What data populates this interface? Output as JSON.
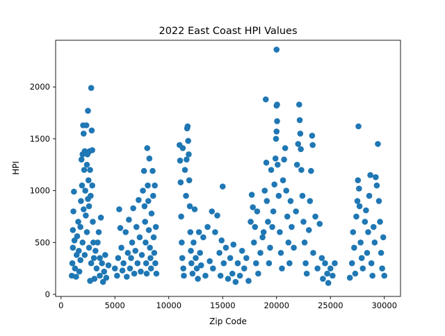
{
  "chart_data": {
    "type": "scatter",
    "title": "2022 East Coast HPI Values",
    "xlabel": "Zip Code",
    "ylabel": "HPI",
    "xlim": [
      -500,
      31500
    ],
    "ylim": [
      -20,
      2450
    ],
    "xticks": [
      0,
      5000,
      10000,
      15000,
      20000,
      25000,
      30000
    ],
    "yticks": [
      0,
      500,
      1000,
      1500,
      2000
    ],
    "grid": false,
    "marker_color": "#1f77b4",
    "points": [
      {
        "x": 1000,
        "y": 180
      },
      {
        "x": 1050,
        "y": 300
      },
      {
        "x": 1100,
        "y": 450
      },
      {
        "x": 1100,
        "y": 620
      },
      {
        "x": 1150,
        "y": 800
      },
      {
        "x": 1200,
        "y": 990
      },
      {
        "x": 1250,
        "y": 520
      },
      {
        "x": 1300,
        "y": 250
      },
      {
        "x": 1400,
        "y": 170
      },
      {
        "x": 1450,
        "y": 380
      },
      {
        "x": 1500,
        "y": 560
      },
      {
        "x": 1600,
        "y": 700
      },
      {
        "x": 1650,
        "y": 420
      },
      {
        "x": 1700,
        "y": 220
      },
      {
        "x": 1800,
        "y": 330
      },
      {
        "x": 1850,
        "y": 900
      },
      {
        "x": 1900,
        "y": 1300
      },
      {
        "x": 1950,
        "y": 1050
      },
      {
        "x": 2000,
        "y": 1350
      },
      {
        "x": 2050,
        "y": 1630
      },
      {
        "x": 2100,
        "y": 1550
      },
      {
        "x": 2150,
        "y": 1200
      },
      {
        "x": 2200,
        "y": 1380
      },
      {
        "x": 2250,
        "y": 1000
      },
      {
        "x": 2300,
        "y": 760
      },
      {
        "x": 2350,
        "y": 1630
      },
      {
        "x": 2400,
        "y": 1250
      },
      {
        "x": 2450,
        "y": 1350
      },
      {
        "x": 2500,
        "y": 1770
      },
      {
        "x": 2550,
        "y": 1100
      },
      {
        "x": 2600,
        "y": 850
      },
      {
        "x": 2650,
        "y": 1380
      },
      {
        "x": 2700,
        "y": 1200
      },
      {
        "x": 2750,
        "y": 950
      },
      {
        "x": 2800,
        "y": 1990
      },
      {
        "x": 2850,
        "y": 1580
      },
      {
        "x": 2900,
        "y": 1390
      },
      {
        "x": 2900,
        "y": 1050
      },
      {
        "x": 2950,
        "y": 700
      },
      {
        "x": 3000,
        "y": 500
      },
      {
        "x": 3050,
        "y": 350
      },
      {
        "x": 2800,
        "y": 300
      },
      {
        "x": 2600,
        "y": 450
      },
      {
        "x": 2400,
        "y": 600
      },
      {
        "x": 2200,
        "y": 380
      },
      {
        "x": 2000,
        "y": 500
      },
      {
        "x": 1800,
        "y": 650
      },
      {
        "x": 2100,
        "y": 820
      },
      {
        "x": 2500,
        "y": 920
      },
      {
        "x": 2700,
        "y": 130
      },
      {
        "x": 3200,
        "y": 420
      },
      {
        "x": 3300,
        "y": 250
      },
      {
        "x": 3500,
        "y": 600
      },
      {
        "x": 3600,
        "y": 180
      },
      {
        "x": 3700,
        "y": 740
      },
      {
        "x": 3800,
        "y": 300
      },
      {
        "x": 3900,
        "y": 120
      },
      {
        "x": 4000,
        "y": 220
      },
      {
        "x": 4100,
        "y": 380
      },
      {
        "x": 4200,
        "y": 160
      },
      {
        "x": 4400,
        "y": 280
      },
      {
        "x": 3400,
        "y": 500
      },
      {
        "x": 3100,
        "y": 150
      },
      {
        "x": 3600,
        "y": 350
      },
      {
        "x": 5000,
        "y": 250
      },
      {
        "x": 5200,
        "y": 180
      },
      {
        "x": 5300,
        "y": 350
      },
      {
        "x": 5400,
        "y": 820
      },
      {
        "x": 5500,
        "y": 640
      },
      {
        "x": 5600,
        "y": 450
      },
      {
        "x": 5700,
        "y": 230
      },
      {
        "x": 5800,
        "y": 300
      },
      {
        "x": 6000,
        "y": 600
      },
      {
        "x": 6100,
        "y": 170
      },
      {
        "x": 6200,
        "y": 400
      },
      {
        "x": 6300,
        "y": 720
      },
      {
        "x": 6400,
        "y": 250
      },
      {
        "x": 6500,
        "y": 350
      },
      {
        "x": 6600,
        "y": 500
      },
      {
        "x": 6700,
        "y": 830
      },
      {
        "x": 6800,
        "y": 200
      },
      {
        "x": 6900,
        "y": 420
      },
      {
        "x": 7000,
        "y": 650
      },
      {
        "x": 7100,
        "y": 300
      },
      {
        "x": 7200,
        "y": 910
      },
      {
        "x": 7300,
        "y": 550
      },
      {
        "x": 7400,
        "y": 220
      },
      {
        "x": 7500,
        "y": 380
      },
      {
        "x": 7600,
        "y": 1000
      },
      {
        "x": 7700,
        "y": 1190
      },
      {
        "x": 7750,
        "y": 850
      },
      {
        "x": 7800,
        "y": 700
      },
      {
        "x": 7850,
        "y": 500
      },
      {
        "x": 7900,
        "y": 300
      },
      {
        "x": 7950,
        "y": 200
      },
      {
        "x": 8000,
        "y": 1410
      },
      {
        "x": 8050,
        "y": 1050
      },
      {
        "x": 8100,
        "y": 900
      },
      {
        "x": 8150,
        "y": 620
      },
      {
        "x": 8200,
        "y": 1310
      },
      {
        "x": 8250,
        "y": 450
      },
      {
        "x": 8300,
        "y": 350
      },
      {
        "x": 8350,
        "y": 250
      },
      {
        "x": 8400,
        "y": 780
      },
      {
        "x": 8500,
        "y": 1190
      },
      {
        "x": 8550,
        "y": 950
      },
      {
        "x": 8600,
        "y": 550
      },
      {
        "x": 8650,
        "y": 400
      },
      {
        "x": 8700,
        "y": 1050
      },
      {
        "x": 8750,
        "y": 300
      },
      {
        "x": 8800,
        "y": 650
      },
      {
        "x": 8850,
        "y": 200
      },
      {
        "x": 11000,
        "y": 1440
      },
      {
        "x": 11050,
        "y": 1290
      },
      {
        "x": 11100,
        "y": 1080
      },
      {
        "x": 11150,
        "y": 750
      },
      {
        "x": 11200,
        "y": 500
      },
      {
        "x": 11250,
        "y": 350
      },
      {
        "x": 11300,
        "y": 1410
      },
      {
        "x": 11350,
        "y": 250
      },
      {
        "x": 11400,
        "y": 180
      },
      {
        "x": 11500,
        "y": 1200
      },
      {
        "x": 11600,
        "y": 950
      },
      {
        "x": 11650,
        "y": 1300
      },
      {
        "x": 11700,
        "y": 1600
      },
      {
        "x": 11750,
        "y": 1620
      },
      {
        "x": 11800,
        "y": 1480
      },
      {
        "x": 11850,
        "y": 1350
      },
      {
        "x": 11900,
        "y": 1100
      },
      {
        "x": 11950,
        "y": 850
      },
      {
        "x": 12000,
        "y": 600
      },
      {
        "x": 12050,
        "y": 420
      },
      {
        "x": 12100,
        "y": 300
      },
      {
        "x": 12200,
        "y": 200
      },
      {
        "x": 12300,
        "y": 500
      },
      {
        "x": 12400,
        "y": 820
      },
      {
        "x": 12500,
        "y": 350
      },
      {
        "x": 12600,
        "y": 250
      },
      {
        "x": 12700,
        "y": 150
      },
      {
        "x": 12800,
        "y": 600
      },
      {
        "x": 12900,
        "y": 400
      },
      {
        "x": 13000,
        "y": 280
      },
      {
        "x": 13200,
        "y": 550
      },
      {
        "x": 13400,
        "y": 180
      },
      {
        "x": 13600,
        "y": 650
      },
      {
        "x": 13800,
        "y": 320
      },
      {
        "x": 14000,
        "y": 800
      },
      {
        "x": 14100,
        "y": 250
      },
      {
        "x": 14300,
        "y": 600
      },
      {
        "x": 14500,
        "y": 760
      },
      {
        "x": 14700,
        "y": 400
      },
      {
        "x": 14800,
        "y": 180
      },
      {
        "x": 14900,
        "y": 520
      },
      {
        "x": 15000,
        "y": 1040
      },
      {
        "x": 15100,
        "y": 300
      },
      {
        "x": 15300,
        "y": 450
      },
      {
        "x": 15500,
        "y": 150
      },
      {
        "x": 15700,
        "y": 350
      },
      {
        "x": 15900,
        "y": 200
      },
      {
        "x": 16000,
        "y": 480
      },
      {
        "x": 16200,
        "y": 120
      },
      {
        "x": 16400,
        "y": 300
      },
      {
        "x": 16600,
        "y": 180
      },
      {
        "x": 16800,
        "y": 420
      },
      {
        "x": 17000,
        "y": 250
      },
      {
        "x": 17200,
        "y": 350
      },
      {
        "x": 17400,
        "y": 130
      },
      {
        "x": 17600,
        "y": 700
      },
      {
        "x": 17700,
        "y": 960
      },
      {
        "x": 17800,
        "y": 840
      },
      {
        "x": 17900,
        "y": 500
      },
      {
        "x": 18000,
        "y": 650
      },
      {
        "x": 18100,
        "y": 300
      },
      {
        "x": 18200,
        "y": 800
      },
      {
        "x": 18300,
        "y": 200
      },
      {
        "x": 18500,
        "y": 400
      },
      {
        "x": 18700,
        "y": 550
      },
      {
        "x": 18800,
        "y": 600
      },
      {
        "x": 18900,
        "y": 1000
      },
      {
        "x": 19000,
        "y": 1880
      },
      {
        "x": 19050,
        "y": 1270
      },
      {
        "x": 19100,
        "y": 900
      },
      {
        "x": 19200,
        "y": 700
      },
      {
        "x": 19300,
        "y": 300
      },
      {
        "x": 19400,
        "y": 450
      },
      {
        "x": 19500,
        "y": 1200
      },
      {
        "x": 19600,
        "y": 650
      },
      {
        "x": 19700,
        "y": 800
      },
      {
        "x": 19800,
        "y": 1060
      },
      {
        "x": 19900,
        "y": 1310
      },
      {
        "x": 19950,
        "y": 1500
      },
      {
        "x": 20000,
        "y": 2360
      },
      {
        "x": 20050,
        "y": 1830
      },
      {
        "x": 20000,
        "y": 1820
      },
      {
        "x": 20050,
        "y": 1670
      },
      {
        "x": 20000,
        "y": 1570
      },
      {
        "x": 20100,
        "y": 1250
      },
      {
        "x": 20200,
        "y": 950
      },
      {
        "x": 20300,
        "y": 600
      },
      {
        "x": 20400,
        "y": 400
      },
      {
        "x": 20500,
        "y": 250
      },
      {
        "x": 20600,
        "y": 1100
      },
      {
        "x": 20700,
        "y": 1300
      },
      {
        "x": 20800,
        "y": 1410
      },
      {
        "x": 20900,
        "y": 1000
      },
      {
        "x": 21000,
        "y": 750
      },
      {
        "x": 21100,
        "y": 500
      },
      {
        "x": 21200,
        "y": 300
      },
      {
        "x": 21300,
        "y": 900
      },
      {
        "x": 21400,
        "y": 650
      },
      {
        "x": 21600,
        "y": 450
      },
      {
        "x": 21800,
        "y": 800
      },
      {
        "x": 21900,
        "y": 1250
      },
      {
        "x": 22000,
        "y": 1450
      },
      {
        "x": 22100,
        "y": 1830
      },
      {
        "x": 22150,
        "y": 1680
      },
      {
        "x": 22200,
        "y": 1550
      },
      {
        "x": 22250,
        "y": 1400
      },
      {
        "x": 22300,
        "y": 1200
      },
      {
        "x": 22400,
        "y": 950
      },
      {
        "x": 22500,
        "y": 700
      },
      {
        "x": 22600,
        "y": 500
      },
      {
        "x": 22700,
        "y": 300
      },
      {
        "x": 22800,
        "y": 200
      },
      {
        "x": 23000,
        "y": 620
      },
      {
        "x": 23100,
        "y": 900
      },
      {
        "x": 23200,
        "y": 1190
      },
      {
        "x": 23300,
        "y": 1530
      },
      {
        "x": 23350,
        "y": 1440
      },
      {
        "x": 23400,
        "y": 400
      },
      {
        "x": 23600,
        "y": 750
      },
      {
        "x": 23800,
        "y": 250
      },
      {
        "x": 24000,
        "y": 680
      },
      {
        "x": 24200,
        "y": 350
      },
      {
        "x": 24300,
        "y": 150
      },
      {
        "x": 24500,
        "y": 300
      },
      {
        "x": 24700,
        "y": 200
      },
      {
        "x": 24800,
        "y": 110
      },
      {
        "x": 25000,
        "y": 250
      },
      {
        "x": 25200,
        "y": 180
      },
      {
        "x": 25400,
        "y": 300
      },
      {
        "x": 26800,
        "y": 160
      },
      {
        "x": 27000,
        "y": 300
      },
      {
        "x": 27100,
        "y": 600
      },
      {
        "x": 27200,
        "y": 450
      },
      {
        "x": 27300,
        "y": 200
      },
      {
        "x": 27400,
        "y": 750
      },
      {
        "x": 27500,
        "y": 900
      },
      {
        "x": 27550,
        "y": 1100
      },
      {
        "x": 27600,
        "y": 1620
      },
      {
        "x": 27650,
        "y": 1020
      },
      {
        "x": 27700,
        "y": 850
      },
      {
        "x": 27800,
        "y": 500
      },
      {
        "x": 27900,
        "y": 350
      },
      {
        "x": 28000,
        "y": 250
      },
      {
        "x": 28200,
        "y": 700
      },
      {
        "x": 28300,
        "y": 810
      },
      {
        "x": 28400,
        "y": 400
      },
      {
        "x": 28500,
        "y": 600
      },
      {
        "x": 28600,
        "y": 950
      },
      {
        "x": 28700,
        "y": 1150
      },
      {
        "x": 28800,
        "y": 300
      },
      {
        "x": 28900,
        "y": 180
      },
      {
        "x": 29000,
        "y": 650
      },
      {
        "x": 29100,
        "y": 500
      },
      {
        "x": 29200,
        "y": 1130
      },
      {
        "x": 29300,
        "y": 1050
      },
      {
        "x": 29400,
        "y": 1450
      },
      {
        "x": 29500,
        "y": 900
      },
      {
        "x": 29600,
        "y": 700
      },
      {
        "x": 29700,
        "y": 400
      },
      {
        "x": 29800,
        "y": 250
      },
      {
        "x": 29900,
        "y": 550
      },
      {
        "x": 30000,
        "y": 180
      }
    ]
  }
}
